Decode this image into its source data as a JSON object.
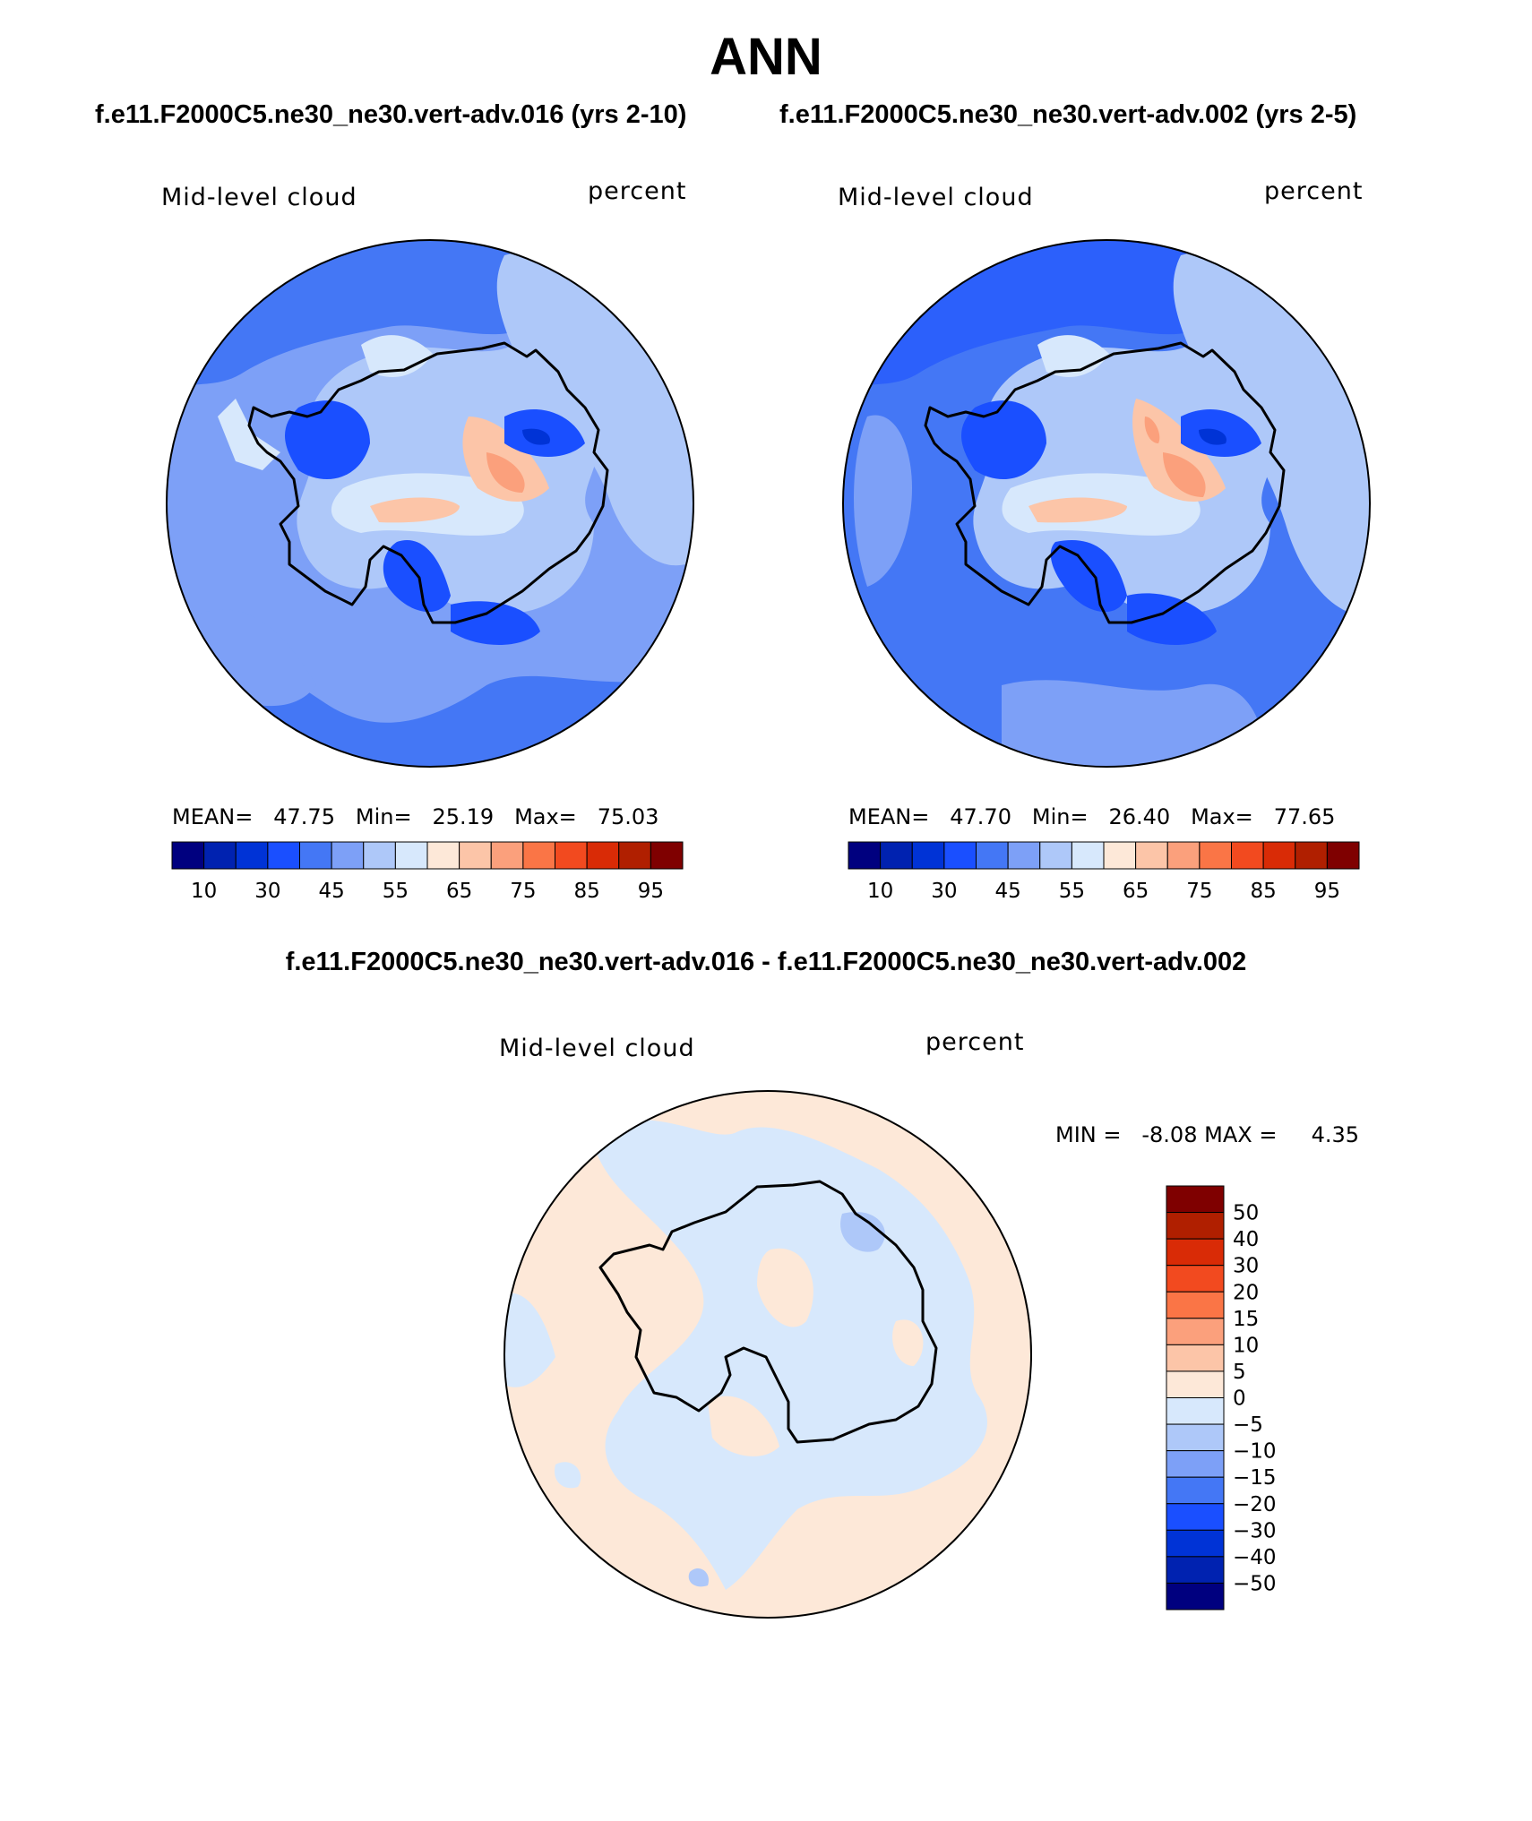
{
  "title": "ANN",
  "panels": [
    {
      "case_title": "f.e11.F2000C5.ne30_ne30.vert-adv.016 (yrs 2-10)",
      "variable": "Mid-level cloud",
      "units": "percent",
      "stats": {
        "mean_label": "MEAN=",
        "mean": "47.75",
        "min_label": "Min=",
        "min": "25.19",
        "max_label": "Max=",
        "max": "75.03"
      }
    },
    {
      "case_title": "f.e11.F2000C5.ne30_ne30.vert-adv.002 (yrs 2-5)",
      "variable": "Mid-level cloud",
      "units": "percent",
      "stats": {
        "mean_label": "MEAN=",
        "mean": "47.70",
        "min_label": "Min=",
        "min": "26.40",
        "max_label": "Max=",
        "max": "77.65"
      }
    }
  ],
  "abs_colorbar": {
    "colors": [
      "#00007f",
      "#0022b0",
      "#0033d6",
      "#1a4fff",
      "#4477f5",
      "#7da0f7",
      "#aec8f9",
      "#d7e8fc",
      "#fde8d8",
      "#fcc5a8",
      "#fba07c",
      "#fa7546",
      "#f24a1f",
      "#d92b06",
      "#b01f00",
      "#7f0000"
    ],
    "labels": [
      "10",
      "30",
      "45",
      "55",
      "65",
      "75",
      "85",
      "95"
    ]
  },
  "diff": {
    "title": "f.e11.F2000C5.ne30_ne30.vert-adv.016 - f.e11.F2000C5.ne30_ne30.vert-adv.002",
    "variable": "Mid-level cloud",
    "units": "percent",
    "stats": {
      "min_label": "MIN =",
      "min": "-8.08",
      "max_label": "MAX =",
      "max": "4.35"
    },
    "colorbar": {
      "colors": [
        "#7f0000",
        "#b01f00",
        "#d92b06",
        "#f24a1f",
        "#fa7546",
        "#fba07c",
        "#fcc5a8",
        "#fde8d8",
        "#d7e8fc",
        "#aec8f9",
        "#7da0f7",
        "#4477f5",
        "#1a4fff",
        "#0033d6",
        "#0022b0",
        "#00007f"
      ],
      "labels": [
        "50",
        "40",
        "30",
        "20",
        "15",
        "10",
        "5",
        "0",
        "−5",
        "−10",
        "−15",
        "−20",
        "−30",
        "−40",
        "−50"
      ]
    }
  },
  "colors": {
    "ocean_mid": "#5b8ef5",
    "ocean_light": "#8fb0f7",
    "land_light": "#d7e8fc",
    "diff_pos": "#fde8d8",
    "diff_neg": "#d7e8fc",
    "coast": "#000000"
  }
}
